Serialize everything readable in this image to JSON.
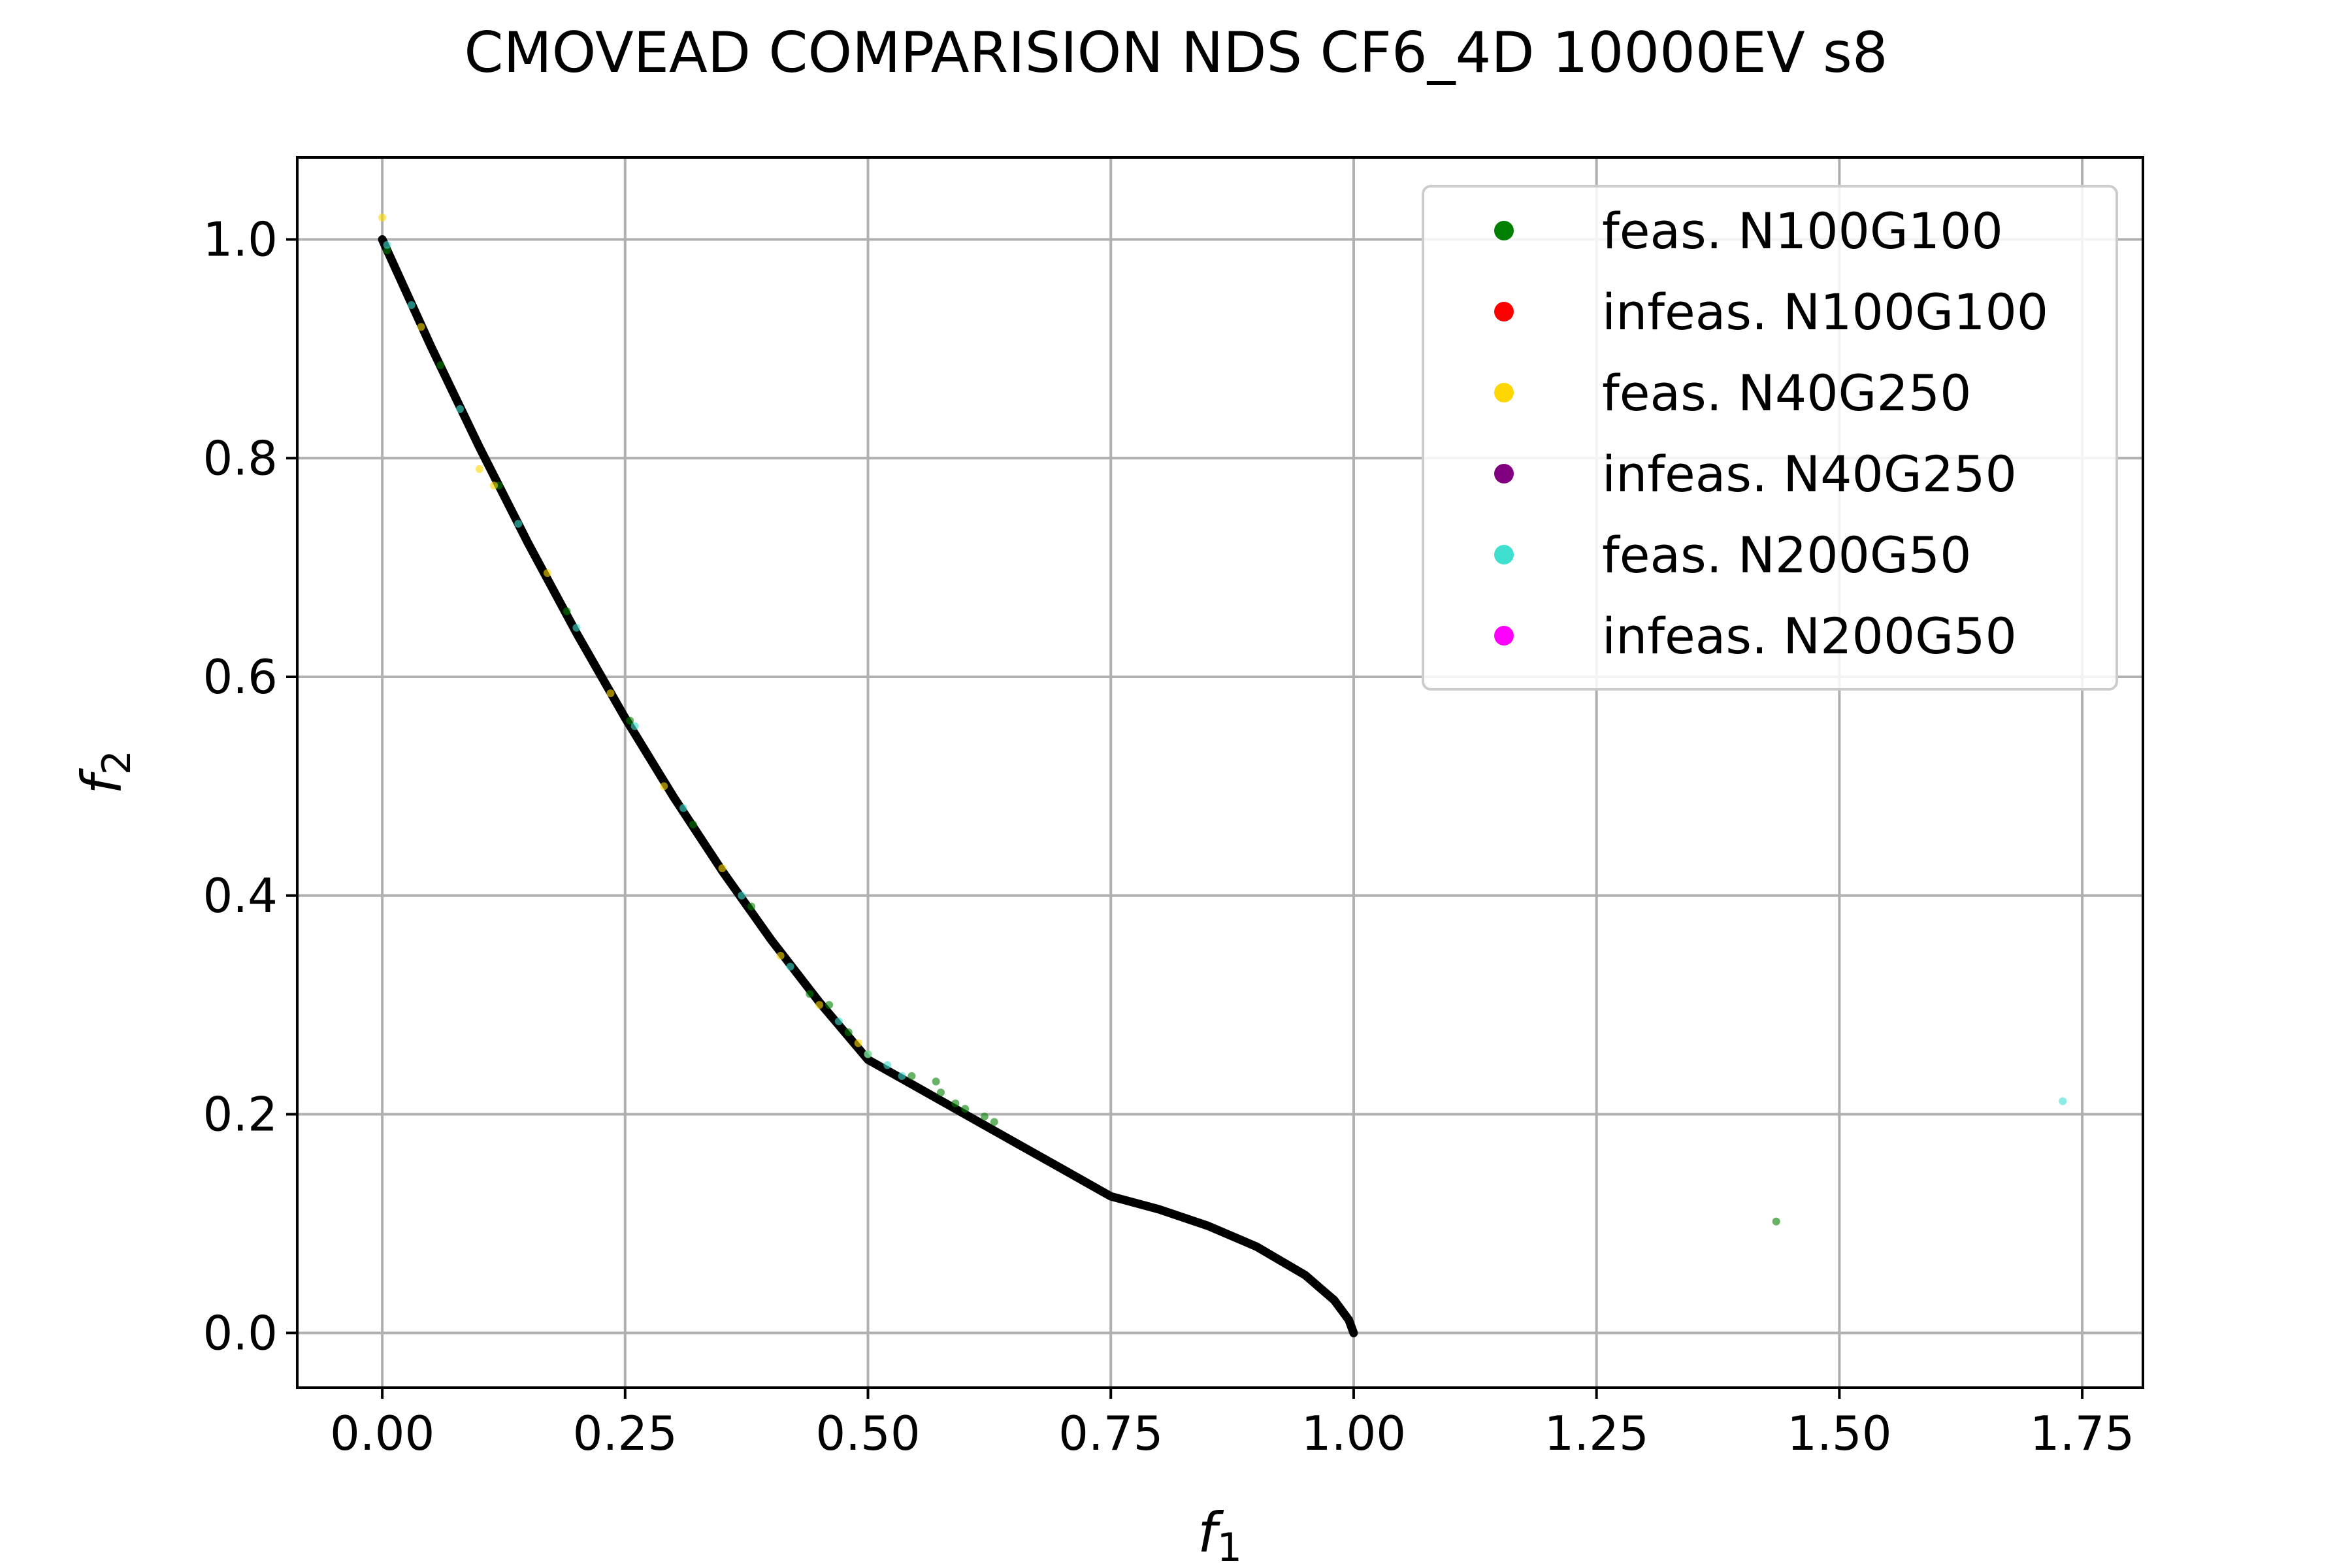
{
  "chart_data": {
    "type": "scatter",
    "title": "CMOVEAD COMPARISION NDS CF6_4D 10000EV s8",
    "xlabel": {
      "main": "f",
      "sub": "1"
    },
    "ylabel": {
      "main": "f",
      "sub": "2"
    },
    "xlim": [
      -0.0875,
      1.8125
    ],
    "ylim": [
      -0.05,
      1.075
    ],
    "xticks": [
      0.0,
      0.25,
      0.5,
      0.75,
      1.0,
      1.25,
      1.5,
      1.75
    ],
    "xtick_labels": [
      "0.00",
      "0.25",
      "0.50",
      "0.75",
      "1.00",
      "1.25",
      "1.50",
      "1.75"
    ],
    "yticks": [
      0.0,
      0.2,
      0.4,
      0.6,
      0.8,
      1.0
    ],
    "ytick_labels": [
      "0.0",
      "0.2",
      "0.4",
      "0.6",
      "0.8",
      "1.0"
    ],
    "grid": true,
    "legend_position": "top-right",
    "pareto_front": {
      "color": "#000000",
      "points": [
        [
          0.0,
          1.0
        ],
        [
          0.05,
          0.9025
        ],
        [
          0.1,
          0.81
        ],
        [
          0.15,
          0.7225
        ],
        [
          0.2,
          0.64
        ],
        [
          0.25,
          0.5625
        ],
        [
          0.3,
          0.49
        ],
        [
          0.35,
          0.4225
        ],
        [
          0.4,
          0.36
        ],
        [
          0.45,
          0.3025
        ],
        [
          0.5,
          0.25
        ],
        [
          0.55,
          0.225
        ],
        [
          0.6,
          0.2
        ],
        [
          0.65,
          0.175
        ],
        [
          0.7,
          0.15
        ],
        [
          0.75,
          0.125
        ],
        [
          0.8,
          0.113
        ],
        [
          0.85,
          0.098
        ],
        [
          0.9,
          0.079
        ],
        [
          0.95,
          0.053
        ],
        [
          0.98,
          0.03
        ],
        [
          0.995,
          0.012
        ],
        [
          1.0,
          0.0
        ]
      ]
    },
    "series": [
      {
        "name": "feas. N100G100",
        "color": "#008000",
        "points": [
          [
            0.005,
            0.99
          ],
          [
            0.06,
            0.885
          ],
          [
            0.12,
            0.775
          ],
          [
            0.19,
            0.66
          ],
          [
            0.255,
            0.56
          ],
          [
            0.32,
            0.465
          ],
          [
            0.38,
            0.39
          ],
          [
            0.44,
            0.31
          ],
          [
            0.46,
            0.3
          ],
          [
            0.48,
            0.275
          ],
          [
            0.545,
            0.235
          ],
          [
            0.57,
            0.23
          ],
          [
            0.575,
            0.22
          ],
          [
            0.59,
            0.21
          ],
          [
            0.6,
            0.205
          ],
          [
            0.62,
            0.198
          ],
          [
            0.63,
            0.193
          ],
          [
            1.435,
            0.102
          ]
        ]
      },
      {
        "name": "infeas. N100G100",
        "color": "#ff0000",
        "points": []
      },
      {
        "name": "feas. N40G250",
        "color": "#ffd700",
        "points": [
          [
            0.0,
            1.02
          ],
          [
            0.04,
            0.92
          ],
          [
            0.1,
            0.79
          ],
          [
            0.115,
            0.775
          ],
          [
            0.17,
            0.695
          ],
          [
            0.235,
            0.585
          ],
          [
            0.29,
            0.5
          ],
          [
            0.35,
            0.425
          ],
          [
            0.41,
            0.345
          ],
          [
            0.45,
            0.3
          ],
          [
            0.49,
            0.265
          ],
          [
            0.5,
            0.255
          ]
        ]
      },
      {
        "name": "infeas. N40G250",
        "color": "#800080",
        "points": []
      },
      {
        "name": "feas. N200G50",
        "color": "#40e0d0",
        "points": [
          [
            0.005,
            0.995
          ],
          [
            0.03,
            0.94
          ],
          [
            0.08,
            0.845
          ],
          [
            0.14,
            0.74
          ],
          [
            0.2,
            0.645
          ],
          [
            0.26,
            0.555
          ],
          [
            0.31,
            0.48
          ],
          [
            0.37,
            0.4
          ],
          [
            0.42,
            0.335
          ],
          [
            0.47,
            0.285
          ],
          [
            0.5,
            0.255
          ],
          [
            0.52,
            0.245
          ],
          [
            0.535,
            0.235
          ],
          [
            1.73,
            0.212
          ]
        ]
      },
      {
        "name": "infeas. N200G50",
        "color": "#ff00ff",
        "points": []
      }
    ]
  }
}
